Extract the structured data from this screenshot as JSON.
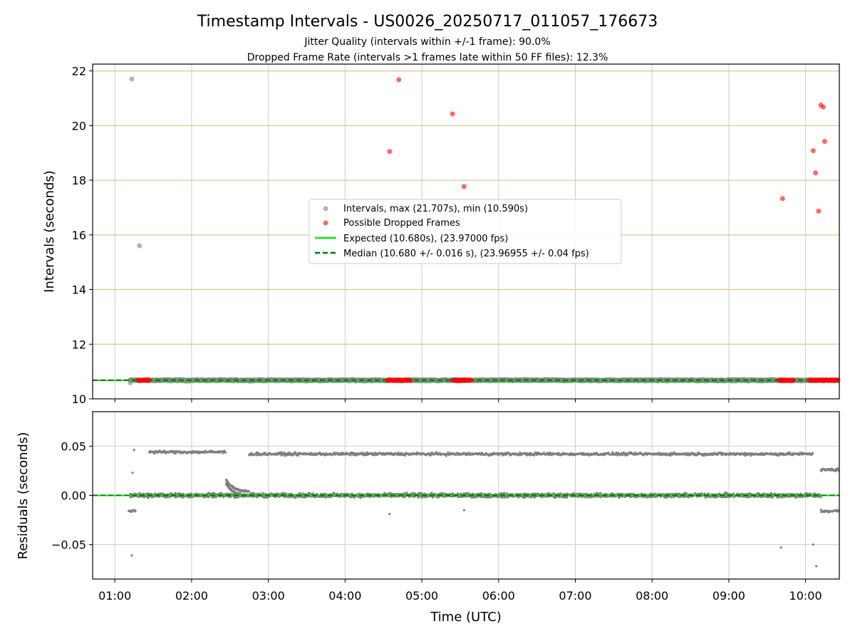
{
  "chart_data": {
    "type": "scatter",
    "title": "Timestamp Intervals - US0026_20250717_011057_176673",
    "subtitle_lines": [
      "Jitter Quality (intervals within +/-1 frame): 90.0%",
      "Dropped Frame Rate (intervals >1 frames late within 50 FF files): 12.3%"
    ],
    "xlabel": "Time (UTC)",
    "x_ticks": [
      "01:00",
      "02:00",
      "03:00",
      "04:00",
      "05:00",
      "06:00",
      "07:00",
      "08:00",
      "09:00",
      "10:00"
    ],
    "xlim_hours": [
      0.71,
      10.44
    ],
    "grid": true,
    "colors": {
      "intervals": "#808080",
      "dropped": "#ff0000",
      "expected": "#00ee00",
      "median": "#007700",
      "hline": "#d4c68a"
    },
    "top_panel": {
      "ylabel": "Intervals (seconds)",
      "ylim": [
        10,
        22.25
      ],
      "y_ticks": [
        10,
        12,
        14,
        16,
        18,
        20,
        22
      ],
      "expected": 10.68,
      "median": 10.68,
      "legend_placement": "center",
      "series": [
        {
          "name": "Intervals, max (21.707s), min (10.590s)",
          "band": {
            "x_start": 1.2,
            "x_end": 10.44,
            "y": 10.68,
            "spread": 0.04
          },
          "outliers": [
            {
              "x": 1.22,
              "y": 21.707
            },
            {
              "x": 1.32,
              "y": 15.6
            },
            {
              "x": 1.2,
              "y": 10.59
            }
          ]
        },
        {
          "name": "Possible Dropped Frames",
          "clusters": [
            [
              1.3,
              1.45
            ],
            [
              4.55,
              4.85
            ],
            [
              5.4,
              5.65
            ],
            [
              9.65,
              9.85
            ],
            [
              10.05,
              10.44
            ]
          ],
          "cluster_y": 10.68,
          "points": [
            {
              "x": 4.58,
              "y": 19.05
            },
            {
              "x": 4.7,
              "y": 21.68
            },
            {
              "x": 5.4,
              "y": 20.43
            },
            {
              "x": 5.55,
              "y": 17.77
            },
            {
              "x": 9.7,
              "y": 17.33
            },
            {
              "x": 10.1,
              "y": 19.08
            },
            {
              "x": 10.13,
              "y": 18.27
            },
            {
              "x": 10.17,
              "y": 16.87
            },
            {
              "x": 10.2,
              "y": 20.75
            },
            {
              "x": 10.23,
              "y": 20.68
            },
            {
              "x": 10.25,
              "y": 19.42
            }
          ]
        },
        {
          "name": "Expected (10.680s), (23.97000 fps)",
          "kind": "line"
        },
        {
          "name": "Median (10.680 +/- 0.016 s), (23.96955 +/- 0.04 fps)",
          "kind": "dashed-line"
        }
      ]
    },
    "bottom_panel": {
      "ylabel": "Residuals (seconds)",
      "ylim": [
        -0.085,
        0.085
      ],
      "y_ticks": [
        0.05,
        0.0,
        -0.05
      ],
      "y_tick_labels": [
        "0.05",
        "0.00",
        "−0.05"
      ],
      "baseline": 0.0,
      "bands": [
        {
          "x_start": 1.2,
          "x_end": 10.2,
          "y": 0.0,
          "spread": 0.003
        },
        {
          "x_start": 1.45,
          "x_end": 2.45,
          "y": 0.044,
          "spread": 0.002
        },
        {
          "x_start": 2.75,
          "x_end": 10.1,
          "y": 0.042,
          "spread": 0.002
        },
        {
          "x_start": 10.2,
          "x_end": 10.44,
          "y": -0.016,
          "spread": 0.002
        },
        {
          "x_start": 10.2,
          "x_end": 10.44,
          "y": 0.026,
          "spread": 0.002
        },
        {
          "x_start": 1.18,
          "x_end": 1.27,
          "y": -0.016,
          "spread": 0.002
        }
      ],
      "outliers": [
        {
          "x": 1.22,
          "y": -0.061
        },
        {
          "x": 1.23,
          "y": 0.023
        },
        {
          "x": 1.25,
          "y": 0.046
        },
        {
          "x": 4.58,
          "y": -0.019
        },
        {
          "x": 5.55,
          "y": -0.015
        },
        {
          "x": 9.68,
          "y": -0.053
        },
        {
          "x": 10.1,
          "y": -0.05
        },
        {
          "x": 10.14,
          "y": -0.072
        }
      ],
      "bump": {
        "x_start": 2.45,
        "x_end": 2.75,
        "y_peak": 0.014,
        "y_end": 0.007
      }
    }
  }
}
